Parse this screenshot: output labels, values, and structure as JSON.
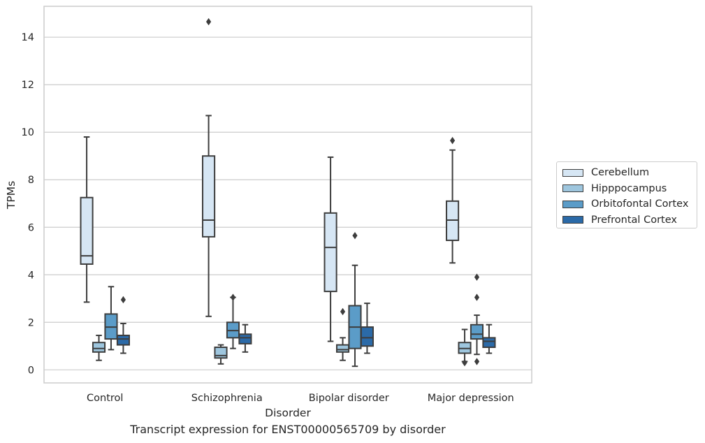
{
  "chart_data": {
    "type": "boxplot",
    "title": "",
    "caption": "Transcript expression for ENST00000565709 by disorder",
    "xlabel": "Disorder",
    "ylabel": "TPMs",
    "ylim": [
      -0.55,
      15.3
    ],
    "yticks": [
      "0",
      "2",
      "4",
      "6",
      "8",
      "10",
      "12",
      "14"
    ],
    "ytick_values": [
      0,
      2,
      4,
      6,
      8,
      10,
      12,
      14
    ],
    "grid": "horizontal",
    "legend_position": "right",
    "categories": [
      "Control",
      "Schizophrenia",
      "Bipolar disorder",
      "Major depression"
    ],
    "series": [
      {
        "name": "Cerebellum",
        "color": "#d6e6f4",
        "boxes": [
          {
            "whisker_low": 2.85,
            "q1": 4.45,
            "median": 4.8,
            "q3": 7.25,
            "whisker_high": 9.8,
            "outliers": []
          },
          {
            "whisker_low": 2.25,
            "q1": 5.6,
            "median": 6.3,
            "q3": 9.0,
            "whisker_high": 10.7,
            "outliers": [
              14.65
            ]
          },
          {
            "whisker_low": 1.2,
            "q1": 3.3,
            "median": 5.15,
            "q3": 6.6,
            "whisker_high": 8.95,
            "outliers": []
          },
          {
            "whisker_low": 4.5,
            "q1": 5.45,
            "median": 6.3,
            "q3": 7.1,
            "whisker_high": 9.25,
            "outliers": [
              9.65
            ]
          }
        ]
      },
      {
        "name": "Hipppocampus",
        "color": "#9ec6de",
        "boxes": [
          {
            "whisker_low": 0.4,
            "q1": 0.75,
            "median": 0.9,
            "q3": 1.15,
            "whisker_high": 1.45,
            "outliers": []
          },
          {
            "whisker_low": 0.25,
            "q1": 0.5,
            "median": 0.6,
            "q3": 0.95,
            "whisker_high": 1.05,
            "outliers": []
          },
          {
            "whisker_low": 0.4,
            "q1": 0.75,
            "median": 0.85,
            "q3": 1.05,
            "whisker_high": 1.35,
            "outliers": [
              2.45
            ]
          },
          {
            "whisker_low": 0.35,
            "q1": 0.7,
            "median": 0.9,
            "q3": 1.15,
            "whisker_high": 1.7,
            "outliers": [
              0.3
            ]
          }
        ]
      },
      {
        "name": "Orbitofontal Cortex",
        "color": "#5b9cc8",
        "boxes": [
          {
            "whisker_low": 0.85,
            "q1": 1.3,
            "median": 1.8,
            "q3": 2.35,
            "whisker_high": 3.5,
            "outliers": []
          },
          {
            "whisker_low": 0.9,
            "q1": 1.35,
            "median": 1.65,
            "q3": 2.0,
            "whisker_high": 3.05,
            "outliers": [
              3.05
            ]
          },
          {
            "whisker_low": 0.15,
            "q1": 0.9,
            "median": 1.8,
            "q3": 2.7,
            "whisker_high": 4.4,
            "outliers": [
              5.65
            ]
          },
          {
            "whisker_low": 0.65,
            "q1": 1.3,
            "median": 1.5,
            "q3": 1.9,
            "whisker_high": 2.3,
            "outliers": [
              3.05,
              3.9,
              0.35
            ]
          }
        ]
      },
      {
        "name": "Prefrontal Cortex",
        "color": "#2b6aa8",
        "boxes": [
          {
            "whisker_low": 0.7,
            "q1": 1.05,
            "median": 1.3,
            "q3": 1.45,
            "whisker_high": 1.95,
            "outliers": [
              2.95
            ]
          },
          {
            "whisker_low": 0.75,
            "q1": 1.1,
            "median": 1.35,
            "q3": 1.5,
            "whisker_high": 1.9,
            "outliers": []
          },
          {
            "whisker_low": 0.7,
            "q1": 1.0,
            "median": 1.35,
            "q3": 1.8,
            "whisker_high": 2.8,
            "outliers": []
          },
          {
            "whisker_low": 0.7,
            "q1": 0.95,
            "median": 1.2,
            "q3": 1.35,
            "whisker_high": 1.9,
            "outliers": []
          }
        ]
      }
    ]
  }
}
